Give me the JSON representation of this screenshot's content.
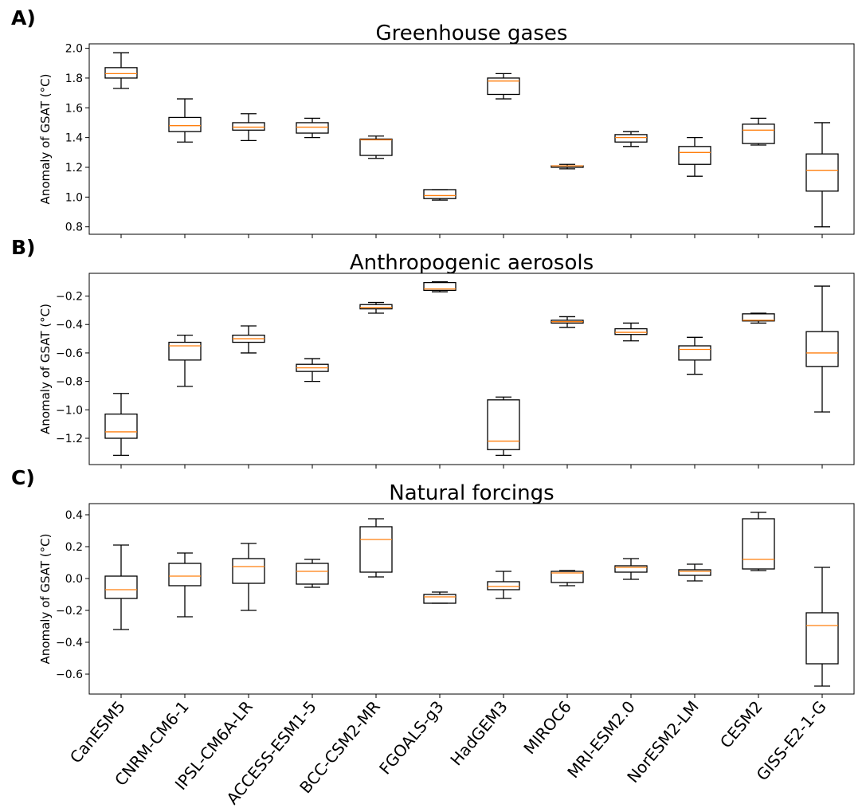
{
  "chart_data": [
    {
      "type": "box",
      "label": "A)",
      "title": "Greenhouse gases",
      "ylabel": "Anomaly of GSAT (°C)",
      "ylim": [
        0.75,
        2.03
      ],
      "yticks": [
        {
          "value": 0.8,
          "label": "0.8"
        },
        {
          "value": 1,
          "label": "1.0"
        },
        {
          "value": 1.2,
          "label": "1.2"
        },
        {
          "value": 1.4,
          "label": "1.4"
        },
        {
          "value": 1.6,
          "label": "1.6"
        },
        {
          "value": 1.8,
          "label": "1.8"
        },
        {
          "value": 2,
          "label": "2.0"
        }
      ],
      "box_color": "#000000",
      "median_color": "#ff7f0e",
      "boxes": {
        "whislo": [
          1.73,
          1.37,
          1.38,
          1.4,
          1.26,
          0.98,
          1.66,
          1.19,
          1.34,
          1.14,
          1.35,
          0.8
        ],
        "q1": [
          1.8,
          1.44,
          1.45,
          1.43,
          1.28,
          0.99,
          1.69,
          1.2,
          1.37,
          1.22,
          1.36,
          1.04
        ],
        "med": [
          1.83,
          1.48,
          1.47,
          1.47,
          1.385,
          1.01,
          1.78,
          1.21,
          1.4,
          1.3,
          1.45,
          1.18
        ],
        "q3": [
          1.87,
          1.535,
          1.5,
          1.5,
          1.39,
          1.05,
          1.8,
          1.21,
          1.42,
          1.34,
          1.49,
          1.29
        ],
        "whishi": [
          1.97,
          1.66,
          1.56,
          1.53,
          1.41,
          1.05,
          1.83,
          1.22,
          1.44,
          1.4,
          1.53,
          1.5
        ]
      }
    },
    {
      "type": "box",
      "label": "B)",
      "title": "Anthropogenic aerosols",
      "ylabel": "Anomaly of GSAT (°C)",
      "ylim": [
        -1.385,
        -0.04
      ],
      "yticks": [
        {
          "value": -1.2,
          "label": "−1.2"
        },
        {
          "value": -1,
          "label": "−1.0"
        },
        {
          "value": -0.8,
          "label": "−0.8"
        },
        {
          "value": -0.6,
          "label": "−0.6"
        },
        {
          "value": -0.4,
          "label": "−0.4"
        },
        {
          "value": -0.2,
          "label": "−0.2"
        }
      ],
      "box_color": "#000000",
      "median_color": "#ff7f0e",
      "boxes": {
        "whislo": [
          -1.32,
          -0.835,
          -0.6,
          -0.8,
          -0.32,
          -0.17,
          -1.32,
          -0.42,
          -0.515,
          -0.75,
          -0.39,
          -1.015
        ],
        "q1": [
          -1.2,
          -0.65,
          -0.525,
          -0.73,
          -0.29,
          -0.16,
          -1.28,
          -0.39,
          -0.47,
          -0.65,
          -0.375,
          -0.695
        ],
        "med": [
          -1.155,
          -0.55,
          -0.5,
          -0.705,
          -0.28,
          -0.15,
          -1.22,
          -0.38,
          -0.455,
          -0.575,
          -0.37,
          -0.6
        ],
        "q3": [
          -1.03,
          -0.525,
          -0.475,
          -0.68,
          -0.26,
          -0.105,
          -0.93,
          -0.37,
          -0.43,
          -0.55,
          -0.325,
          -0.45
        ],
        "whishi": [
          -0.885,
          -0.475,
          -0.41,
          -0.64,
          -0.245,
          -0.1,
          -0.91,
          -0.345,
          -0.39,
          -0.49,
          -0.32,
          -0.13
        ]
      }
    },
    {
      "type": "box",
      "label": "C)",
      "title": "Natural forcings",
      "ylabel": "Anomaly of GSAT (°C)",
      "categories": [
        "CanESM5",
        "CNRM-CM6-1",
        "IPSL-CM6A-LR",
        "ACCESS-ESM1-5",
        "BCC-CSM2-MR",
        "FGOALS-g3",
        "HadGEM3",
        "MIROC6",
        "MRI-ESM2.0",
        "NorESM2-LM",
        "CESM2",
        "GISS-E2-1-G"
      ],
      "ylim": [
        -0.725,
        0.47
      ],
      "yticks": [
        {
          "value": -0.6,
          "label": "−0.6"
        },
        {
          "value": -0.4,
          "label": "−0.4"
        },
        {
          "value": -0.2,
          "label": "−0.2"
        },
        {
          "value": 0,
          "label": "0.0"
        },
        {
          "value": 0.2,
          "label": "0.2"
        },
        {
          "value": 0.4,
          "label": "0.4"
        }
      ],
      "box_color": "#000000",
      "median_color": "#ff7f0e",
      "boxes": {
        "whislo": [
          -0.32,
          -0.24,
          -0.2,
          -0.055,
          0.01,
          -0.155,
          -0.125,
          -0.045,
          -0.005,
          -0.015,
          0.05,
          -0.675
        ],
        "q1": [
          -0.125,
          -0.045,
          -0.03,
          -0.035,
          0.04,
          -0.155,
          -0.07,
          -0.025,
          0.04,
          0.02,
          0.06,
          -0.535
        ],
        "med": [
          -0.07,
          0.015,
          0.075,
          0.045,
          0.245,
          -0.115,
          -0.05,
          0.035,
          0.07,
          0.045,
          0.12,
          -0.295
        ],
        "q3": [
          0.015,
          0.095,
          0.125,
          0.095,
          0.325,
          -0.1,
          -0.02,
          0.045,
          0.08,
          0.055,
          0.375,
          -0.215
        ],
        "whishi": [
          0.21,
          0.16,
          0.22,
          0.12,
          0.375,
          -0.085,
          0.045,
          0.05,
          0.125,
          0.09,
          0.415,
          0.07
        ]
      }
    }
  ]
}
